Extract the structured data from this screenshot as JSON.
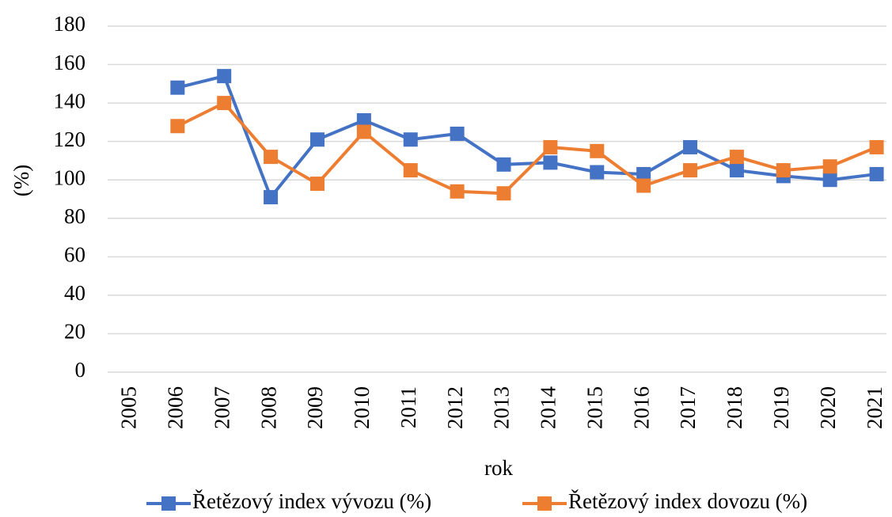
{
  "chart_data": {
    "type": "line",
    "x_label": "rok",
    "y_label": "(%)",
    "categories": [
      "2005",
      "2006",
      "2007",
      "2008",
      "2009",
      "2010",
      "2011",
      "2012",
      "2013",
      "2014",
      "2015",
      "2016",
      "2017",
      "2018",
      "2019",
      "2020",
      "2021"
    ],
    "series": [
      {
        "name": "Řetězový index vývozu (%)",
        "color": "#4472c4",
        "values": [
          null,
          148,
          154,
          91,
          121,
          131,
          121,
          124,
          108,
          109,
          104,
          103,
          117,
          105,
          102,
          100,
          103
        ]
      },
      {
        "name": "Řetězový index dovozu (%)",
        "color": "#ed7d31",
        "values": [
          null,
          128,
          140,
          112,
          98,
          125,
          105,
          94,
          93,
          117,
          115,
          97,
          105,
          112,
          105,
          107,
          117
        ]
      }
    ],
    "ylim": [
      0,
      180
    ],
    "yticks": [
      0,
      20,
      40,
      60,
      80,
      100,
      120,
      140,
      160,
      180
    ],
    "grid": true,
    "legend": "bottom"
  }
}
